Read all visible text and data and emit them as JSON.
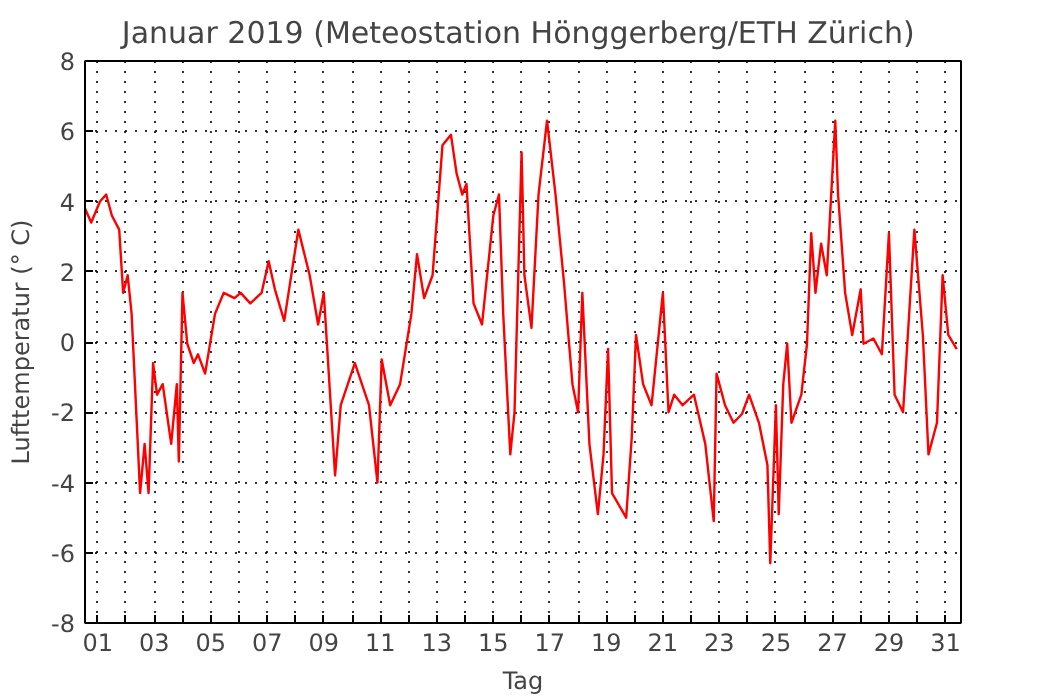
{
  "chart_data": {
    "type": "line",
    "title": "Januar 2019  (Meteostation Hönggerberg/ETH Zürich)",
    "xlabel": "Tag",
    "ylabel": "Lufttemperatur (° C)",
    "xlim": [
      0.55,
      31.55
    ],
    "ylim": [
      -8,
      8
    ],
    "yticks": [
      -8,
      -6,
      -4,
      -2,
      0,
      2,
      4,
      6,
      8
    ],
    "xticks": [
      {
        "value": 1,
        "label": "01"
      },
      {
        "value": 2,
        "label": null
      },
      {
        "value": 3,
        "label": "03"
      },
      {
        "value": 4,
        "label": null
      },
      {
        "value": 5,
        "label": "05"
      },
      {
        "value": 6,
        "label": null
      },
      {
        "value": 7,
        "label": "07"
      },
      {
        "value": 8,
        "label": null
      },
      {
        "value": 9,
        "label": "09"
      },
      {
        "value": 10,
        "label": null
      },
      {
        "value": 11,
        "label": "11"
      },
      {
        "value": 12,
        "label": null
      },
      {
        "value": 13,
        "label": "13"
      },
      {
        "value": 14,
        "label": null
      },
      {
        "value": 15,
        "label": "15"
      },
      {
        "value": 16,
        "label": null
      },
      {
        "value": 17,
        "label": "17"
      },
      {
        "value": 18,
        "label": null
      },
      {
        "value": 19,
        "label": "19"
      },
      {
        "value": 20,
        "label": null
      },
      {
        "value": 21,
        "label": "21"
      },
      {
        "value": 22,
        "label": null
      },
      {
        "value": 23,
        "label": "23"
      },
      {
        "value": 24,
        "label": null
      },
      {
        "value": 25,
        "label": "25"
      },
      {
        "value": 26,
        "label": null
      },
      {
        "value": 27,
        "label": "27"
      },
      {
        "value": 28,
        "label": null
      },
      {
        "value": 29,
        "label": "29"
      },
      {
        "value": 30,
        "label": null
      },
      {
        "value": 31,
        "label": "31"
      }
    ],
    "grid": true,
    "marker": "none",
    "line_style": "solid",
    "series": [
      {
        "color": "#ff0000",
        "x": [
          0.55,
          0.77,
          1.08,
          1.3,
          1.5,
          1.76,
          1.9,
          2.06,
          2.2,
          2.3,
          2.5,
          2.66,
          2.8,
          2.96,
          3.1,
          3.3,
          3.6,
          3.8,
          3.87,
          4.0,
          4.17,
          4.4,
          4.55,
          4.8,
          5.15,
          5.46,
          5.84,
          6.06,
          6.4,
          6.8,
          7.05,
          7.27,
          7.6,
          8.1,
          8.5,
          8.8,
          9.0,
          9.4,
          9.6,
          10.1,
          10.6,
          10.9,
          11.05,
          11.35,
          11.7,
          12.1,
          12.3,
          12.55,
          12.85,
          13.2,
          13.5,
          13.7,
          13.9,
          14.05,
          14.3,
          14.6,
          15.0,
          15.2,
          15.35,
          15.6,
          15.75,
          16.0,
          16.1,
          16.35,
          16.6,
          16.9,
          17.2,
          17.5,
          17.8,
          18.0,
          18.15,
          18.4,
          18.7,
          18.9,
          19.06,
          19.2,
          19.7,
          19.9,
          20.05,
          20.3,
          20.6,
          21.0,
          21.2,
          21.4,
          21.7,
          22.1,
          22.5,
          22.8,
          22.9,
          23.2,
          23.5,
          23.8,
          24.05,
          24.4,
          24.7,
          24.8,
          25.0,
          25.1,
          25.26,
          25.4,
          25.55,
          25.9,
          26.1,
          26.25,
          26.4,
          26.6,
          26.8,
          27.1,
          27.2,
          27.45,
          27.7,
          28.0,
          28.1,
          28.45,
          28.75,
          29.0,
          29.2,
          29.5,
          29.9,
          30.2,
          30.4,
          30.7,
          30.9,
          31.1,
          31.4
        ],
        "values": [
          3.8,
          3.4,
          4.0,
          4.2,
          3.6,
          3.2,
          1.4,
          1.9,
          0.8,
          -0.9,
          -4.3,
          -2.9,
          -4.3,
          -0.6,
          -1.5,
          -1.2,
          -2.9,
          -1.2,
          -3.4,
          1.4,
          -0.05,
          -0.6,
          -0.35,
          -0.9,
          0.8,
          1.4,
          1.25,
          1.4,
          1.1,
          1.4,
          2.3,
          1.5,
          0.6,
          3.2,
          1.9,
          0.5,
          1.4,
          -3.8,
          -1.8,
          -0.6,
          -1.8,
          -4.0,
          -0.5,
          -1.8,
          -1.2,
          0.8,
          2.5,
          1.25,
          1.9,
          5.6,
          5.9,
          4.8,
          4.2,
          4.5,
          1.1,
          0.5,
          3.6,
          4.2,
          0.8,
          -3.2,
          -2.0,
          5.4,
          1.9,
          0.4,
          4.2,
          6.3,
          4.2,
          1.7,
          -1.2,
          -2.0,
          1.4,
          -2.9,
          -4.9,
          -3.2,
          -0.2,
          -4.3,
          -5.0,
          -2.7,
          0.2,
          -1.2,
          -1.8,
          1.4,
          -2.0,
          -1.5,
          -1.8,
          -1.5,
          -2.9,
          -5.1,
          -0.9,
          -1.8,
          -2.3,
          -2.05,
          -1.5,
          -2.3,
          -3.5,
          -6.3,
          -1.8,
          -4.9,
          -1.2,
          -0.05,
          -2.3,
          -1.5,
          -0.05,
          3.1,
          1.4,
          2.8,
          1.9,
          6.3,
          4.2,
          1.4,
          0.2,
          1.5,
          -0.05,
          0.1,
          -0.35,
          3.1,
          -1.5,
          -2.0,
          3.2,
          0.2,
          -3.2,
          -2.3,
          1.9,
          0.2,
          -0.2
        ]
      }
    ]
  }
}
